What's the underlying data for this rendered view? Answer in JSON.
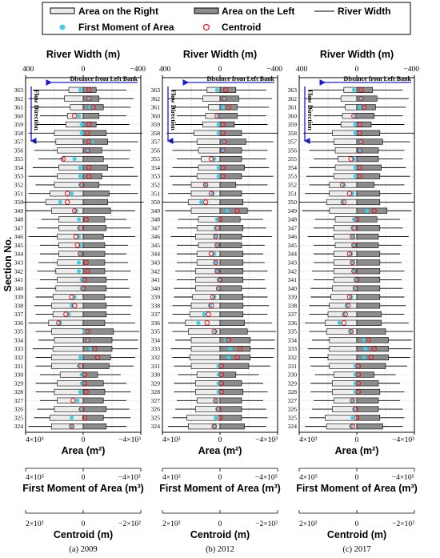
{
  "legend": {
    "area_right": "Area on the Right",
    "area_left": "Area on the Left",
    "river_width": "River Width",
    "first_moment": "First Moment of Area",
    "centroid": "Centroid"
  },
  "colors": {
    "right_fill": "#ececec",
    "left_fill": "#8c8c8c",
    "first_moment": "#3fd0e8",
    "centroid": "#e8131b",
    "arrow": "#1a1adb"
  },
  "axes": {
    "top_label": "River Width (m)",
    "top_ticks": [
      "400",
      "0",
      "−400"
    ],
    "ylabel": "Section No.",
    "area_label": "Area (m²)",
    "area_ticks": [
      "4×10³",
      "0",
      "−4×10³"
    ],
    "moment_label": "First Moment of Area (m³)",
    "moment_ticks": [
      "4×10⁵",
      "0",
      "−4×10⁵"
    ],
    "centroid_label": "Centroid (m)",
    "centroid_ticks": [
      "2×10²",
      "0",
      "−2×10²"
    ],
    "distance_note": "Distance from Left Bank",
    "flow_note": "Flow Direction"
  },
  "chart_data": [
    {
      "type": "bar",
      "caption": "(a) 2009",
      "categories": [
        "363",
        "362",
        "361",
        "360",
        "359",
        "358",
        "357",
        "356",
        "355",
        "354",
        "353",
        "352",
        "351",
        "350",
        "349",
        "348",
        "347",
        "346",
        "345",
        "344",
        "343",
        "342",
        "341",
        "340",
        "339",
        "338",
        "337",
        "336",
        "335",
        "334",
        "333",
        "332",
        "331",
        "330",
        "329",
        "328",
        "327",
        "326",
        "325",
        "324"
      ],
      "area_right": [
        1000,
        1300,
        900,
        1100,
        1200,
        2000,
        1900,
        1800,
        1400,
        1700,
        1800,
        2000,
        2300,
        2600,
        2200,
        1700,
        1700,
        1800,
        1700,
        1700,
        1800,
        1900,
        1800,
        1900,
        2100,
        2200,
        2100,
        2400,
        2200,
        2000,
        2100,
        2200,
        2200,
        1600,
        1800,
        2000,
        1800,
        2000,
        2300,
        2200
      ],
      "area_left": [
        -900,
        -1100,
        -1400,
        -1100,
        -900,
        -1600,
        -1700,
        -1300,
        -1400,
        -1700,
        -1300,
        -1100,
        -1800,
        -1700,
        -1900,
        -1500,
        -1600,
        -1400,
        -1500,
        -1500,
        -1500,
        -1500,
        -1600,
        -1600,
        -1500,
        -1600,
        -1600,
        -1500,
        -2100,
        -2000,
        -2000,
        -1900,
        -1800,
        -1000,
        -1400,
        -1500,
        -1400,
        -1600,
        -1400,
        -1600
      ],
      "width_right": [
        350,
        380,
        360,
        300,
        320,
        380,
        350,
        340,
        310,
        350,
        380,
        330,
        380,
        420,
        400,
        290,
        320,
        380,
        300,
        300,
        310,
        320,
        300,
        330,
        330,
        340,
        330,
        380,
        330,
        310,
        350,
        330,
        330,
        300,
        330,
        330,
        300,
        320,
        340,
        380
      ],
      "width_left": [
        -300,
        -350,
        -330,
        -300,
        -320,
        -410,
        -380,
        -330,
        -320,
        -350,
        -380,
        -330,
        -380,
        -420,
        -360,
        -300,
        -330,
        -360,
        -310,
        -300,
        -310,
        -330,
        -310,
        -320,
        -330,
        -340,
        -330,
        -360,
        -390,
        -380,
        -380,
        -360,
        -350,
        -260,
        -300,
        -330,
        -300,
        -320,
        -330,
        -300
      ],
      "first_moment": [
        0.2,
        -0.4,
        -0.5,
        0.3,
        0.1,
        0.1,
        -0.6,
        -0.3,
        0.6,
        0.2,
        0.2,
        0.2,
        0.8,
        1.6,
        0.5,
        0.3,
        0.3,
        0.3,
        0.2,
        0.2,
        0.3,
        0.3,
        0.1,
        0.1,
        0.6,
        0.8,
        1.0,
        1.6,
        -0.1,
        -0.3,
        -0.5,
        0.2,
        0.3,
        0.1,
        0.1,
        0.2,
        0.4,
        0.2,
        0.8,
        0.8
      ],
      "centroid": [
        -20,
        -20,
        -35,
        30,
        -20,
        -15,
        -20,
        -15,
        70,
        -20,
        -20,
        5,
        55,
        55,
        30,
        -10,
        10,
        25,
        20,
        10,
        -10,
        -15,
        -5,
        0,
        40,
        30,
        60,
        85,
        -15,
        -15,
        -40,
        -50,
        10,
        -5,
        -5,
        -10,
        35,
        5,
        -5,
        40
      ]
    },
    {
      "type": "bar",
      "caption": "(b) 2012",
      "categories": [
        "363",
        "362",
        "361",
        "360",
        "359",
        "358",
        "357",
        "356",
        "355",
        "354",
        "353",
        "352",
        "351",
        "350",
        "349",
        "348",
        "347",
        "346",
        "345",
        "344",
        "343",
        "342",
        "341",
        "340",
        "339",
        "338",
        "337",
        "336",
        "335",
        "334",
        "333",
        "332",
        "331",
        "330",
        "329",
        "328",
        "327",
        "326",
        "325",
        "324"
      ],
      "area_right": [
        900,
        1200,
        800,
        1000,
        1200,
        1800,
        1600,
        1500,
        1300,
        1500,
        1600,
        2000,
        2000,
        2200,
        2000,
        1500,
        1600,
        1700,
        1500,
        1600,
        1600,
        1700,
        1700,
        1700,
        1900,
        2000,
        2100,
        2400,
        2200,
        2000,
        2000,
        2100,
        2000,
        1600,
        1700,
        1700,
        1600,
        1700,
        2300,
        2200
      ],
      "area_left": [
        -1100,
        -1300,
        -1200,
        -1200,
        -1000,
        -1500,
        -1800,
        -1500,
        -1500,
        -1700,
        -1500,
        -1100,
        -1500,
        -1600,
        -1900,
        -1400,
        -1600,
        -1500,
        -1500,
        -1600,
        -1600,
        -1600,
        -1600,
        -1500,
        -1600,
        -1600,
        -1600,
        -1700,
        -1900,
        -2100,
        -2100,
        -2100,
        -2000,
        -1100,
        -1500,
        -1600,
        -1500,
        -1500,
        -1500,
        -1700
      ],
      "width_right": [
        330,
        360,
        330,
        300,
        310,
        370,
        340,
        330,
        300,
        330,
        350,
        330,
        360,
        400,
        380,
        290,
        300,
        340,
        300,
        300,
        300,
        310,
        300,
        320,
        320,
        330,
        330,
        360,
        330,
        310,
        340,
        330,
        320,
        290,
        320,
        320,
        300,
        310,
        330,
        360
      ],
      "width_left": [
        -320,
        -360,
        -340,
        -320,
        -330,
        -400,
        -370,
        -330,
        -320,
        -340,
        -370,
        -330,
        -380,
        -400,
        -360,
        -300,
        -320,
        -360,
        -310,
        -300,
        -310,
        -330,
        -310,
        -320,
        -330,
        -340,
        -330,
        -360,
        -390,
        -380,
        -380,
        -370,
        -350,
        -270,
        -300,
        -330,
        -300,
        -320,
        -330,
        -320
      ],
      "first_moment": [
        0.2,
        -0.3,
        -0.2,
        0.1,
        0.1,
        0.1,
        -0.2,
        -0.2,
        0.4,
        0.1,
        0.1,
        1.0,
        0.5,
        1.3,
        -0.5,
        0.2,
        0.3,
        0.3,
        0.2,
        0.4,
        0.3,
        0.2,
        0.1,
        0.1,
        0.4,
        0.7,
        1.1,
        1.5,
        0.3,
        -0.4,
        -0.7,
        -0.6,
        0.1,
        0.1,
        0.1,
        0.1,
        0.3,
        0.2,
        0.3,
        0.4
      ],
      "centroid": [
        -20,
        -15,
        -30,
        10,
        -10,
        -10,
        -15,
        -10,
        30,
        -10,
        -10,
        50,
        30,
        50,
        -60,
        0,
        10,
        15,
        10,
        30,
        15,
        10,
        0,
        5,
        25,
        30,
        40,
        45,
        20,
        -30,
        -70,
        -60,
        -5,
        -5,
        -5,
        -5,
        15,
        5,
        0,
        20
      ]
    },
    {
      "type": "bar",
      "caption": "(c) 2017",
      "categories": [
        "363",
        "362",
        "361",
        "360",
        "359",
        "358",
        "357",
        "356",
        "355",
        "354",
        "353",
        "352",
        "351",
        "350",
        "349",
        "348",
        "347",
        "346",
        "345",
        "344",
        "343",
        "342",
        "341",
        "340",
        "339",
        "338",
        "337",
        "336",
        "335",
        "334",
        "333",
        "332",
        "331",
        "330",
        "329",
        "328",
        "327",
        "326",
        "325",
        "324"
      ],
      "area_right": [
        900,
        1100,
        800,
        1000,
        1100,
        1700,
        1600,
        1500,
        1300,
        1500,
        1600,
        1900,
        1900,
        2100,
        1900,
        1500,
        1600,
        1600,
        1500,
        1600,
        1600,
        1600,
        1600,
        1700,
        1800,
        1900,
        2000,
        2200,
        2100,
        1900,
        1900,
        2000,
        1900,
        1600,
        1700,
        1700,
        1600,
        1700,
        2200,
        2100
      ],
      "area_left": [
        -1100,
        -1400,
        -1300,
        -1200,
        -1000,
        -1600,
        -1800,
        -1500,
        -1500,
        -1700,
        -1600,
        -1200,
        -1600,
        -1600,
        -2100,
        -1400,
        -1600,
        -1500,
        -1500,
        -1600,
        -1600,
        -1600,
        -1600,
        -1600,
        -1600,
        -1600,
        -1700,
        -1700,
        -2000,
        -2200,
        -2200,
        -2200,
        -2000,
        -1200,
        -1500,
        -1600,
        -1500,
        -1500,
        -1600,
        -1800
      ],
      "width_right": [
        330,
        360,
        330,
        300,
        310,
        370,
        340,
        330,
        300,
        330,
        350,
        330,
        360,
        400,
        380,
        290,
        300,
        340,
        300,
        300,
        300,
        310,
        300,
        320,
        320,
        330,
        330,
        360,
        330,
        310,
        340,
        330,
        320,
        290,
        320,
        320,
        300,
        310,
        330,
        360
      ],
      "width_left": [
        -320,
        -360,
        -340,
        -320,
        -330,
        -400,
        -370,
        -330,
        -320,
        -340,
        -370,
        -330,
        -380,
        -400,
        -380,
        -300,
        -320,
        -360,
        -310,
        -300,
        -310,
        -330,
        -310,
        -320,
        -330,
        -340,
        -330,
        -360,
        -390,
        -380,
        -380,
        -370,
        -350,
        -270,
        -300,
        -330,
        -300,
        -320,
        -330,
        -320
      ],
      "first_moment": [
        0.2,
        -0.3,
        -0.2,
        0.1,
        0.1,
        0.1,
        -0.2,
        -0.2,
        0.2,
        0.1,
        0.1,
        0.9,
        0.3,
        1.0,
        -0.7,
        0.2,
        0.3,
        0.3,
        0.2,
        0.4,
        0.3,
        0.2,
        0.1,
        0.1,
        0.4,
        0.7,
        0.9,
        1.2,
        0.4,
        -0.5,
        -0.6,
        -0.5,
        0.1,
        0.1,
        0.1,
        0.1,
        0.3,
        0.2,
        0.3,
        0.4
      ],
      "centroid": [
        -15,
        -15,
        -25,
        10,
        -10,
        -10,
        -15,
        -10,
        20,
        -10,
        -10,
        50,
        25,
        45,
        -60,
        0,
        10,
        15,
        10,
        25,
        15,
        10,
        0,
        5,
        25,
        30,
        40,
        45,
        20,
        -40,
        -60,
        -50,
        -5,
        -5,
        -5,
        -5,
        15,
        5,
        0,
        15
      ]
    }
  ]
}
